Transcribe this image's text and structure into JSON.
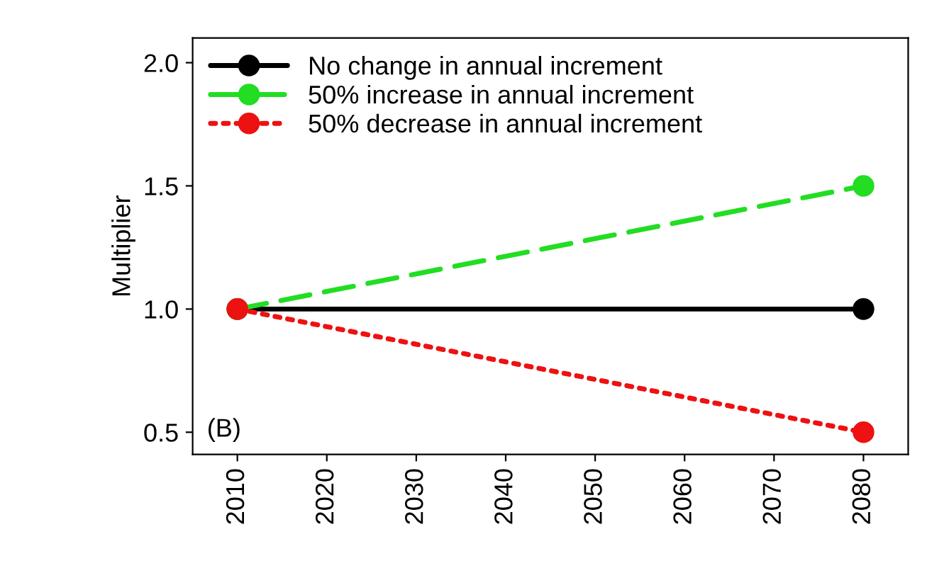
{
  "chart_data": {
    "type": "line",
    "ylabel": "Multiplier",
    "annotations": [
      "(B)"
    ],
    "x": [
      2010,
      2080
    ],
    "series": [
      {
        "name": "No change in annual increment",
        "color": "#000000",
        "values": [
          1.0,
          1.0
        ],
        "line_style": "solid"
      },
      {
        "name": "50% increase in annual increment",
        "color": "#22dd22",
        "values": [
          1.0,
          1.5
        ],
        "line_style": "dashed"
      },
      {
        "name": "50% decrease in annual increment",
        "color": "#ee1111",
        "values": [
          1.0,
          0.5
        ],
        "line_style": "dotted"
      }
    ],
    "xlim": [
      2005,
      2085
    ],
    "xticks": [
      2010,
      2020,
      2030,
      2040,
      2050,
      2060,
      2070,
      2080
    ],
    "ylim": [
      0.41,
      2.1
    ],
    "yticks": [
      {
        "value": 0.5,
        "label": "0.5"
      },
      {
        "value": 1.0,
        "label": "1.0"
      },
      {
        "value": 1.5,
        "label": "1.5"
      },
      {
        "value": 2.0,
        "label": "2.0"
      }
    ],
    "marker": "circle",
    "legend": "top left",
    "grid": false
  }
}
